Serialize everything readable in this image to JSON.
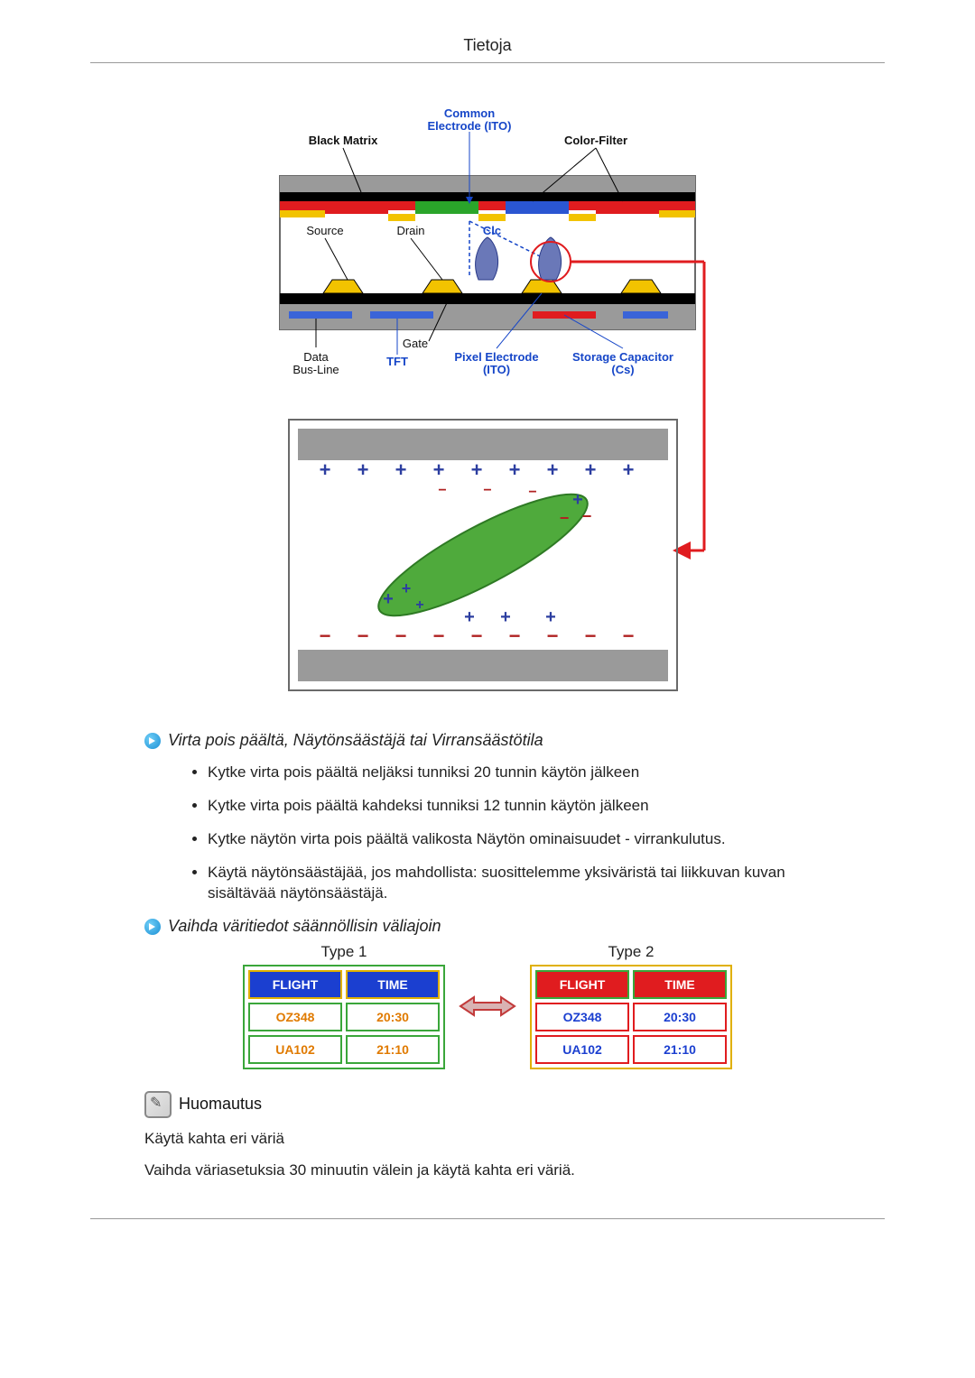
{
  "header": {
    "title": "Tietoja"
  },
  "diagram_top": {
    "labels": {
      "common_electrode": "Common\nElectrode (ITO)",
      "black_matrix": "Black Matrix",
      "color_filter": "Color-Filter",
      "source": "Source",
      "drain": "Drain",
      "clc": "Clc",
      "data_bus_line": "Data\nBus-Line",
      "tft": "TFT",
      "gate": "Gate",
      "pixel_electrode": "Pixel Electrode\n(ITO)",
      "storage_capacitor": "Storage Capacitor\n(Cs)"
    },
    "colors": {
      "label_black": "#111111",
      "label_blue": "#1646c8",
      "frame": "#6a6a6a",
      "black_layer": "#000000",
      "red_layer": "#e01c1f",
      "green_filter": "#2aa52a",
      "blue_filter": "#2a56d2",
      "yellow": "#f2c300",
      "substrate": "#9a9a9a",
      "tft_blue": "#3a64d8",
      "storage_red": "#e01c1f",
      "arrow_red": "#e01c1f",
      "circle_red": "#e01c1f"
    }
  },
  "diagram_bottom": {
    "colors": {
      "electrode": "#9a9a9a",
      "crystal_fill": "#4faa3c",
      "crystal_stroke": "#2e7a24",
      "plus": "#2c3ea0",
      "minus": "#b02222",
      "frame": "#6a6a6a",
      "arrow_red": "#e01c1f"
    }
  },
  "section1": {
    "title": "Virta pois päältä, Näytönsäästäjä tai Virransäästötila",
    "items": [
      "Kytke virta pois päältä neljäksi tunniksi 20 tunnin käytön jälkeen",
      "Kytke virta pois päältä kahdeksi tunniksi 12 tunnin käytön jälkeen",
      "Kytke näytön virta pois päältä valikosta Näytön ominaisuudet - virrankulutus.",
      "Käytä näytönsäästäjää, jos mahdollista: suosittelemme yksiväristä tai liikkuvan kuvan sisältävää näytönsäästäjä."
    ]
  },
  "section2": {
    "title": "Vaihda väritiedot säännöllisin väliajoin",
    "type1_label": "Type 1",
    "type2_label": "Type 2",
    "headers": [
      "FLIGHT",
      "TIME"
    ],
    "rows": [
      [
        "OZ348",
        "20:30"
      ],
      [
        "UA102",
        "21:10"
      ]
    ],
    "type1_colors": {
      "outer_border": "#3aa63a",
      "header_bg": "#1b3fd0",
      "header_text": "#ffffff",
      "header_border": "#e0b000",
      "cell_bg": "#ffffff",
      "cell_text": "#e07a00",
      "cell_border": "#3aa63a"
    },
    "type2_colors": {
      "outer_border": "#e0b000",
      "header_bg": "#e01c1f",
      "header_text": "#ffffff",
      "header_border": "#3aa63a",
      "cell_bg": "#ffffff",
      "cell_text": "#1b3fd0",
      "cell_border": "#e01c1f"
    },
    "arrow_color": "#c23a3a"
  },
  "note": {
    "title": "Huomautus",
    "p1": "Käytä kahta eri väriä",
    "p2": "Vaihda väriasetuksia 30 minuutin välein ja käytä kahta eri väriä."
  }
}
